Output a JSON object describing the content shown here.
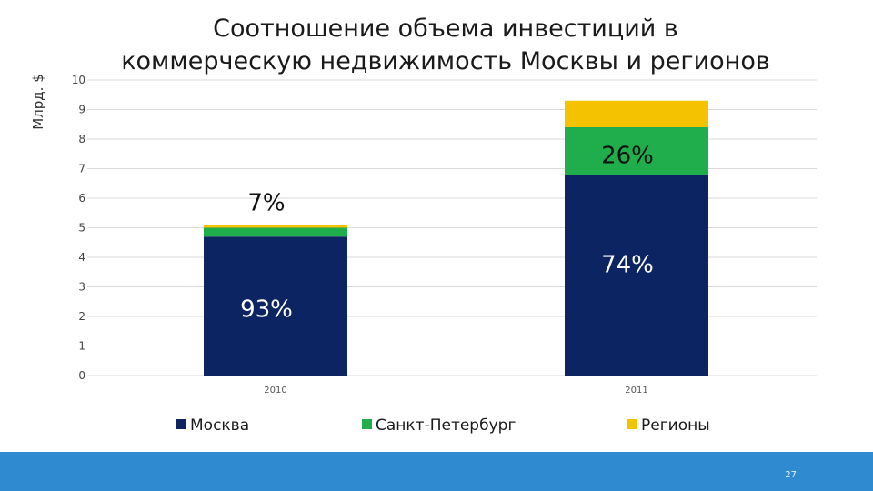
{
  "chart_data": {
    "type": "stacked-bar",
    "title": "Соотношение объема инвестиций в коммерческую недвижимость Москвы и регионов",
    "ylabel": "Млрд. $",
    "xlabel": "",
    "ylim": [
      0,
      10
    ],
    "yticks": [
      "0",
      "1",
      "2",
      "3",
      "4",
      "5",
      "6",
      "7",
      "8",
      "9",
      "10"
    ],
    "categories": [
      "2010",
      "2011"
    ],
    "series": [
      {
        "name": "Москва",
        "color": "#0c2462",
        "values": [
          4.7,
          6.8
        ]
      },
      {
        "name": "Санкт-Петербург",
        "color": "#1fae4b",
        "values": [
          0.3,
          1.6
        ]
      },
      {
        "name": "Регионы",
        "color": "#f5c200",
        "values": [
          0.1,
          0.9
        ]
      }
    ],
    "annotations": [
      {
        "text": "93%",
        "category": "2010",
        "y": 2.3
      },
      {
        "text": "7%",
        "category": "2010",
        "y": 5.9
      },
      {
        "text": "74%",
        "category": "2011",
        "y": 3.8
      },
      {
        "text": "26%",
        "category": "2011",
        "y": 7.5
      }
    ],
    "legend": "bottom",
    "grid": true
  },
  "footer": {
    "page_number": "27"
  }
}
